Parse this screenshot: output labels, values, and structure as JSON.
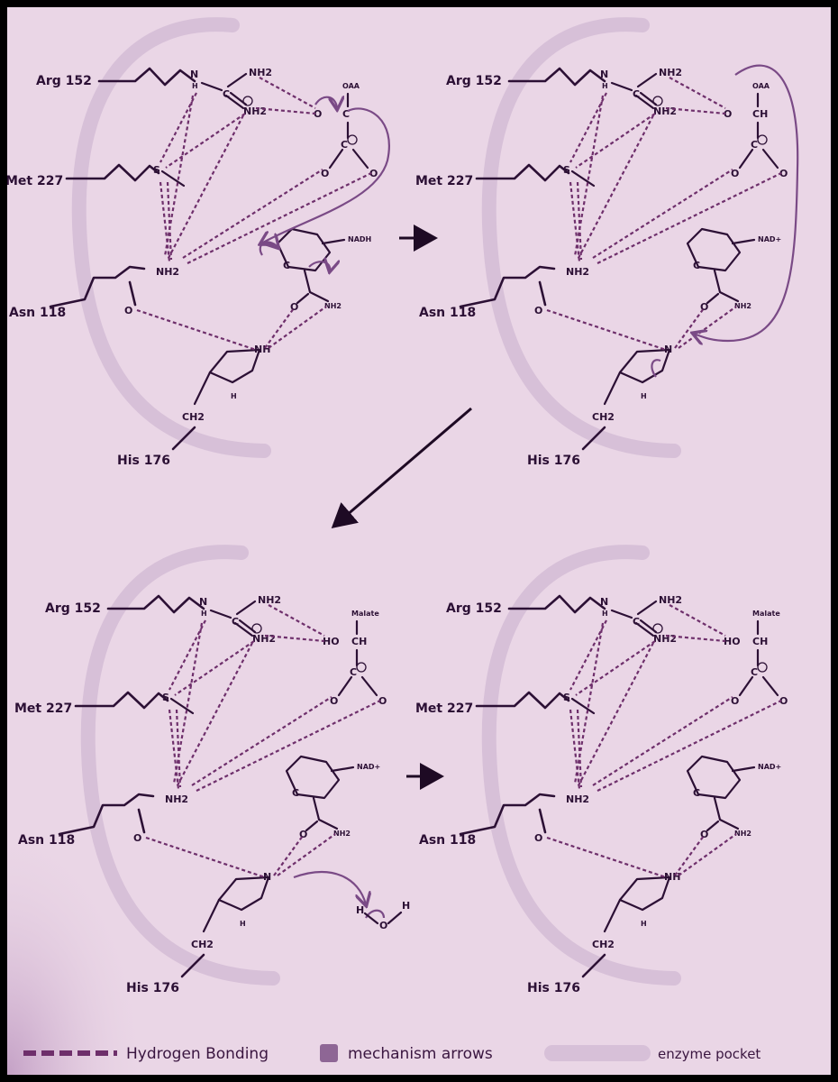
{
  "panels": [
    {
      "residues": {
        "arg": "Arg 152",
        "met": "Met 227",
        "asn": "Asn 118",
        "his": "His 176"
      },
      "substrate": {
        "label": "OAA",
        "top": "O",
        "mid": "C"
      },
      "cofactor": "NADH",
      "atoms": {
        "nh2_top": "NH2",
        "nh2_plus": "NH2",
        "nh": "N",
        "h": "H",
        "s": "S",
        "nh2_asn": "NH2",
        "o_asn": "O",
        "his_n": "NH",
        "his_h": "H",
        "ch2": "CH2",
        "amide": "NH2",
        "c_ring": "C"
      }
    },
    {
      "residues": {
        "arg": "Arg 152",
        "met": "Met 227",
        "asn": "Asn 118",
        "his": "His 176"
      },
      "substrate": {
        "label": "OAA",
        "top": "O",
        "mid": "CH"
      },
      "cofactor": "NAD+",
      "atoms": {
        "nh2_top": "NH2",
        "nh2_plus": "NH2",
        "nh": "N",
        "h": "H",
        "s": "S",
        "nh2_asn": "NH2",
        "o_asn": "O",
        "his_n": "N",
        "his_h": "H",
        "ch2": "CH2",
        "amide": "NH2",
        "c_ring": "C"
      }
    },
    {
      "residues": {
        "arg": "Arg 152",
        "met": "Met 227",
        "asn": "Asn 118",
        "his": "His 176"
      },
      "substrate": {
        "label": "Malate",
        "top": "HO",
        "mid": "CH"
      },
      "cofactor": "NAD+",
      "atoms": {
        "nh2_top": "NH2",
        "nh2_plus": "NH2",
        "nh": "N",
        "h": "H",
        "s": "S",
        "nh2_asn": "NH2",
        "o_asn": "O",
        "his_n": "N",
        "his_h": "H",
        "ch2": "CH2",
        "amide": "NH2",
        "c_ring": "C"
      }
    },
    {
      "residues": {
        "arg": "Arg 152",
        "met": "Met 227",
        "asn": "Asn 118",
        "his": "His 176"
      },
      "substrate": {
        "label": "Malate",
        "top": "HO",
        "mid": "CH"
      },
      "cofactor": "NAD+",
      "atoms": {
        "nh2_top": "NH2",
        "nh2_plus": "NH2",
        "nh": "N",
        "h": "H",
        "s": "S",
        "nh2_asn": "NH2",
        "o_asn": "O",
        "his_n": "NH",
        "his_h": "H",
        "ch2": "CH2",
        "amide": "NH2",
        "c_ring": "C"
      }
    }
  ],
  "water": {
    "h1": "H",
    "o": "O",
    "h2": "H"
  },
  "legend": {
    "hbond": "Hydrogen Bonding",
    "mech": "mechanism arrows",
    "pocket": "enzyme pocket"
  },
  "colors": {
    "background": "#ead6e6",
    "ink": "#2c1035",
    "hbond": "#6e2f6b",
    "mechanism": "#7a4a86",
    "pocket": "#d7c0d8"
  }
}
